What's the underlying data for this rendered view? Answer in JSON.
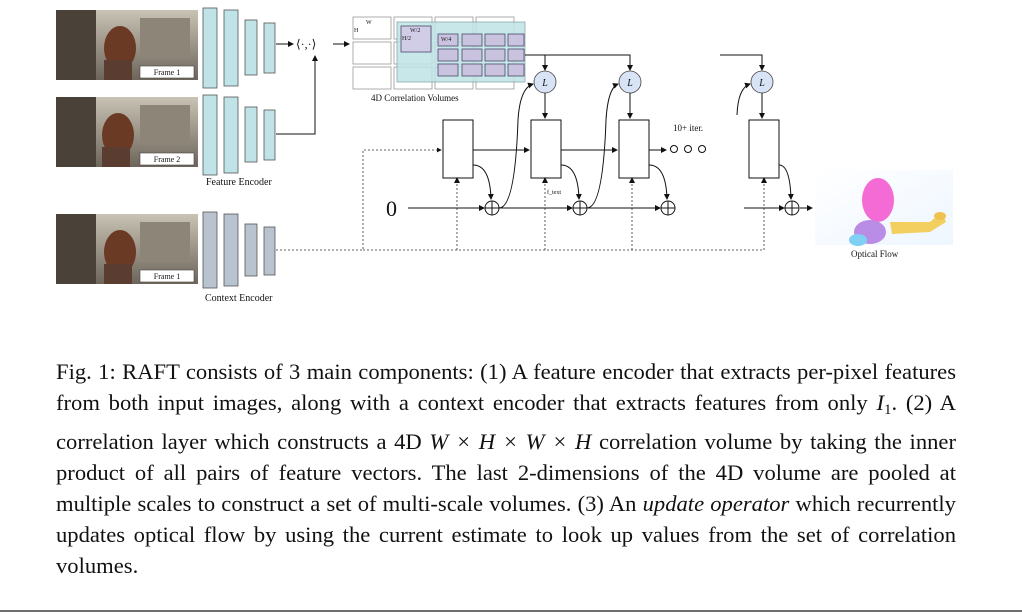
{
  "figure": {
    "frame_labels": [
      "Frame 1",
      "Frame 2",
      "Frame 1"
    ],
    "feature_encoder_label": "Feature Encoder",
    "context_encoder_label": "Context Encoder",
    "dot_product": "⟨·,·⟩",
    "corr_labels": {
      "w": "W",
      "h": "H",
      "w2": "W/2",
      "h2": "H/2",
      "w4": "W/4"
    },
    "corr_volumes_label": "4D Correlation Volumes",
    "lookup_label": "L",
    "iter_label": "10+ iter.",
    "zero_label": "0",
    "flow_small_label": "f_text",
    "optical_flow_label": "Optical Flow",
    "colors": {
      "feature_encoder": "#bfe3e6",
      "context_encoder": "#b9c3cf",
      "lookup_circle": "#d8e4f6",
      "corr_block": "#c9c3e0",
      "corr_teal": "#bfe3e6"
    }
  },
  "caption": {
    "line1": "Fig. 1: RAFT consists of 3 main components: (1) A feature encoder that extracts",
    "line2": "per-pixel features from both input images, along with a context encoder that",
    "line3_pre": "extracts features from only ",
    "line3_var": "I",
    "line3_sub": "1",
    "line3_post": ". (2) A correlation layer which constructs a 4D",
    "line4_math": "W × H × W × H",
    "line4_post": " correlation volume by taking the inner product of all pairs of",
    "line5": "feature vectors. The last 2-dimensions of the 4D volume are pooled at multiple",
    "line6_pre": "scales to construct a set of multi-scale volumes. (3) An ",
    "line6_em": "update operator",
    "line6_post": " which",
    "line7": "recurrently updates optical flow by using the current estimate to look up values",
    "line8": "from the set of correlation volumes."
  }
}
